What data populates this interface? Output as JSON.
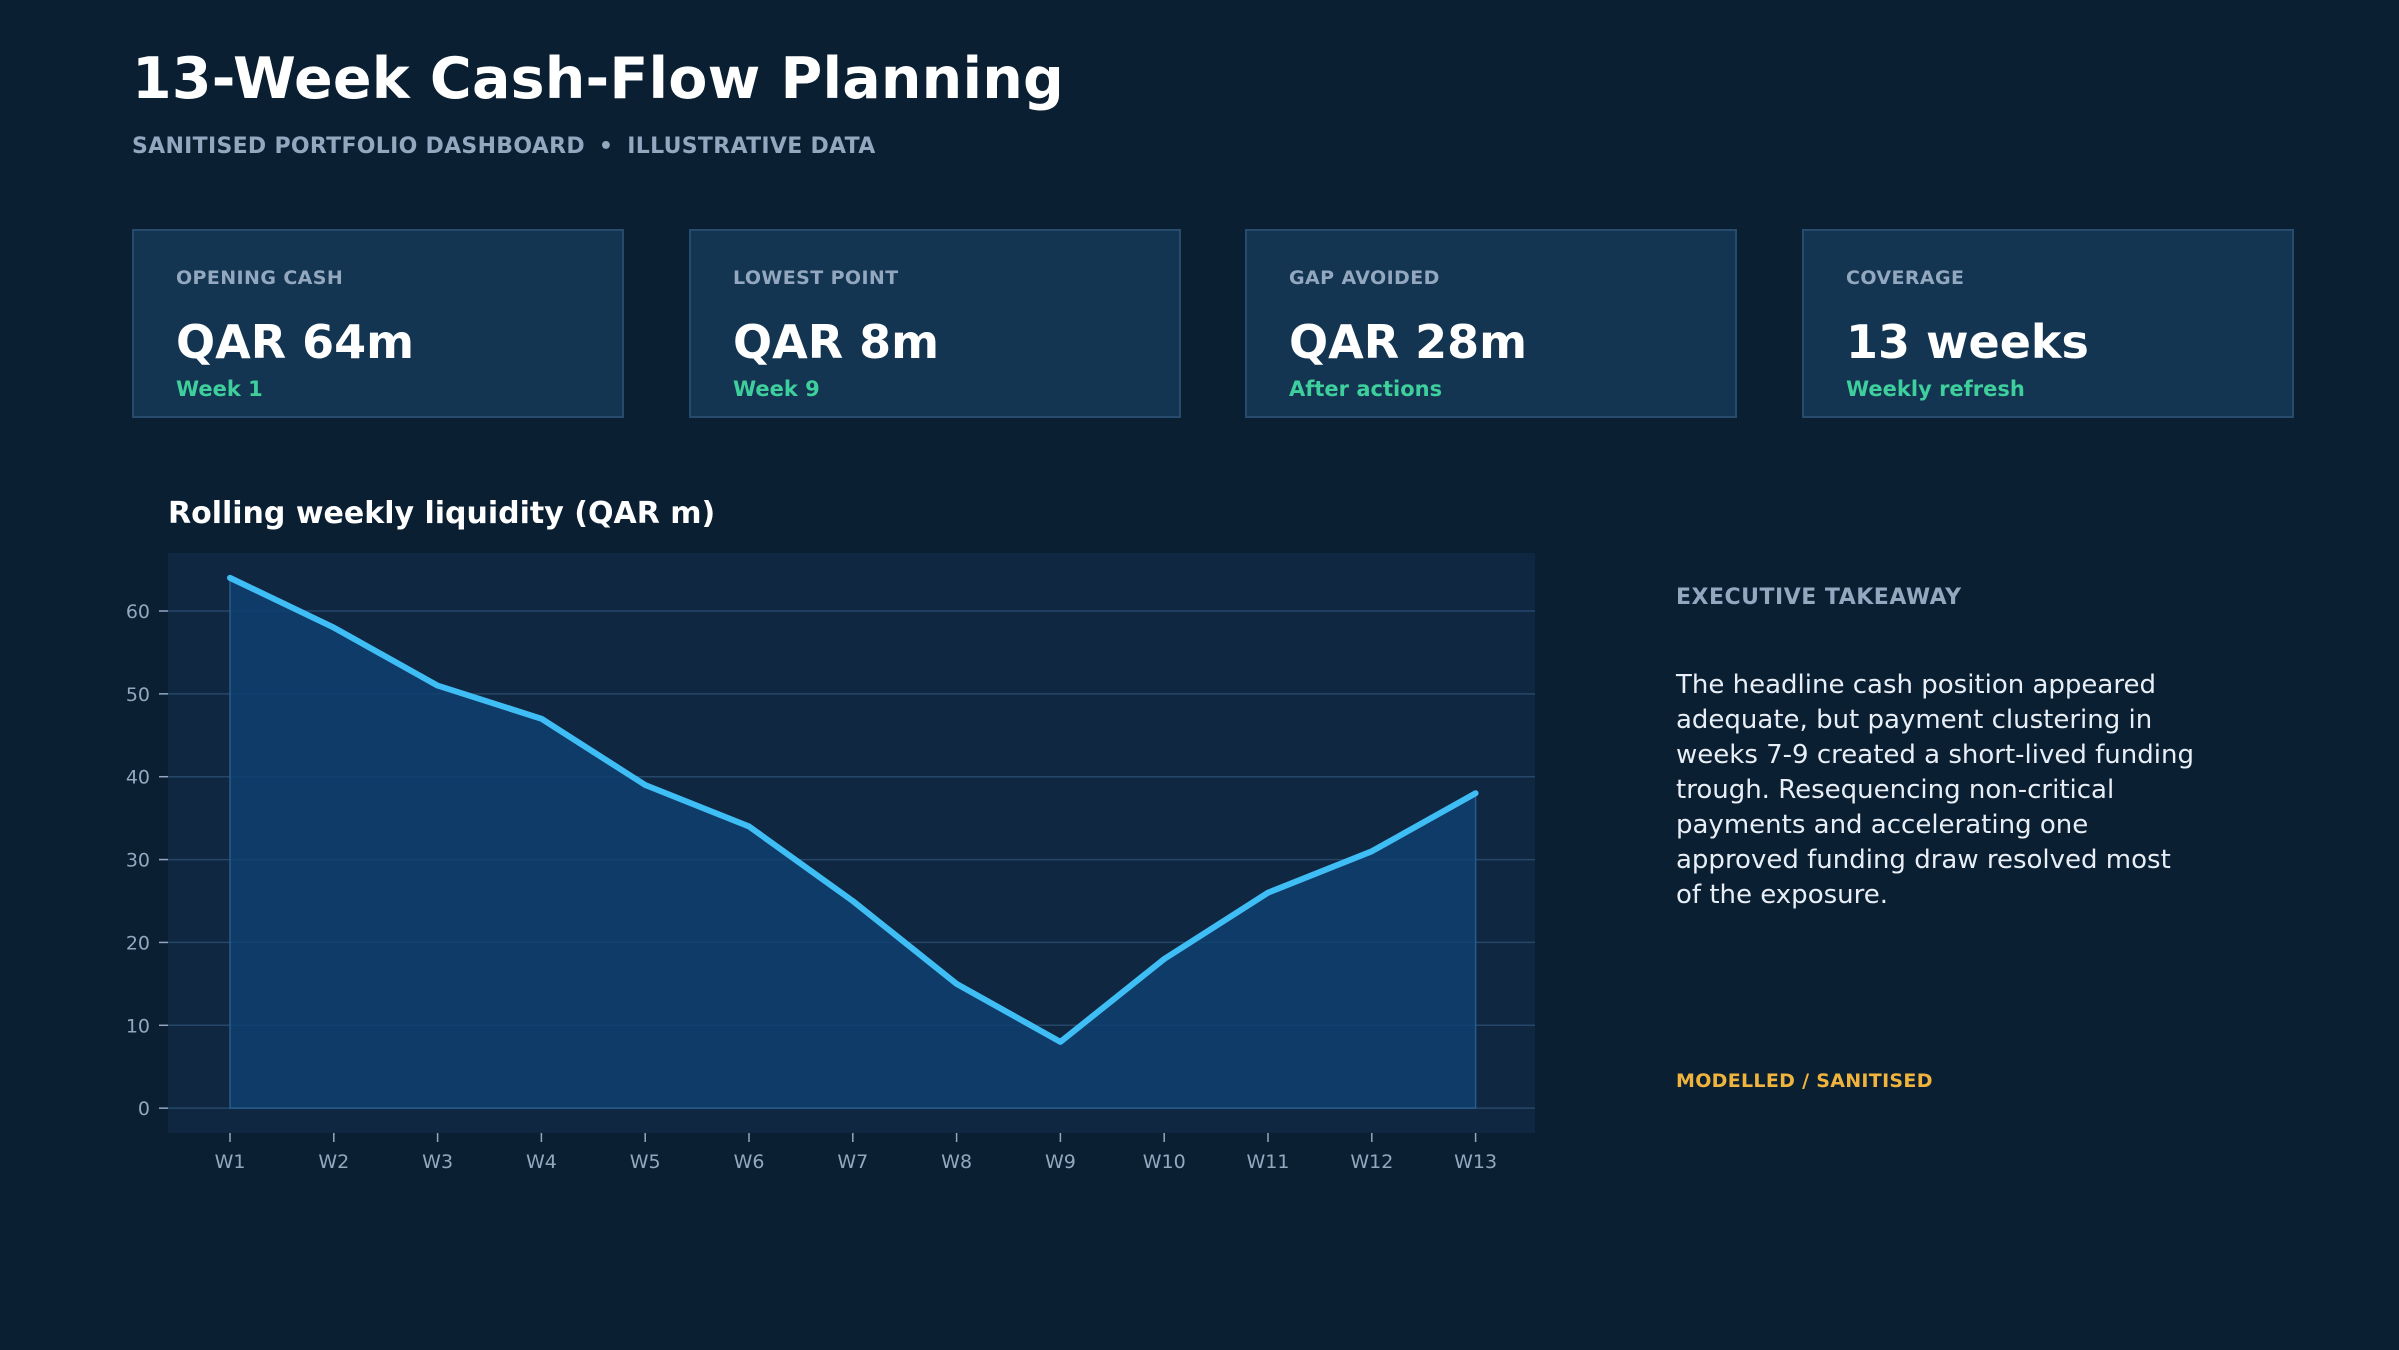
{
  "header": {
    "title": "13-Week Cash-Flow Planning",
    "subtitle_left": "SANITISED PORTFOLIO DASHBOARD",
    "subtitle_sep": "•",
    "subtitle_right": "ILLUSTRATIVE DATA"
  },
  "kpis": [
    {
      "label": "OPENING CASH",
      "value": "QAR 64m",
      "note": "Week 1"
    },
    {
      "label": "LOWEST POINT",
      "value": "QAR 8m",
      "note": "Week 9"
    },
    {
      "label": "GAP AVOIDED",
      "value": "QAR 28m",
      "note": "After actions"
    },
    {
      "label": "COVERAGE",
      "value": "13 weeks",
      "note": "Weekly refresh"
    }
  ],
  "takeaway": {
    "heading": "EXECUTIVE TAKEAWAY",
    "body": "The headline cash position appeared adequate, but payment clustering in weeks 7-9 created a short-lived funding trough. Resequencing non-critical payments and accelerating one approved funding draw resolved most of the exposure.",
    "disclaimer": "MODELLED / SANITISED"
  },
  "colors": {
    "background": "#0b1f33",
    "card": "#133552",
    "accent_line": "#3fbdf5",
    "area_fill": "#0f3f70",
    "positive": "#3ecf9c",
    "warning": "#f0b43c"
  },
  "chart_data": {
    "type": "area",
    "title": "Rolling weekly liquidity (QAR m)",
    "x": [
      "W1",
      "W2",
      "W3",
      "W4",
      "W5",
      "W6",
      "W7",
      "W8",
      "W9",
      "W10",
      "W11",
      "W12",
      "W13"
    ],
    "series": [
      {
        "values": [
          64,
          58,
          51,
          47,
          39,
          34,
          25,
          15,
          8,
          18,
          26,
          31,
          38
        ]
      }
    ],
    "ylim": [
      -3,
      67
    ],
    "yticks": [
      0,
      10,
      20,
      30,
      40,
      50,
      60
    ],
    "grid": true,
    "legend": "none"
  }
}
